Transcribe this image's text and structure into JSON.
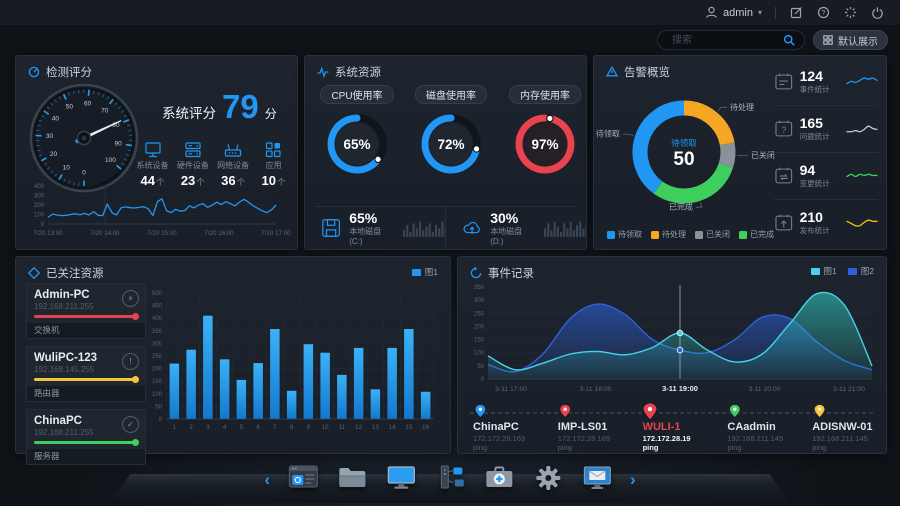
{
  "topbar": {
    "user": "admin",
    "caret": "▾"
  },
  "search": {
    "placeholder": "搜索",
    "default_view": "默认展示"
  },
  "panels": {
    "score": {
      "title": "检测评分",
      "score_label": "系统评分",
      "score_value": "79",
      "score_unit": "分",
      "stats": [
        {
          "label": "系统设备",
          "value": "44",
          "unit": "个",
          "icon": "monitor-icon"
        },
        {
          "label": "硬件设备",
          "value": "23",
          "unit": "个",
          "icon": "server-icon"
        },
        {
          "label": "网络设备",
          "value": "36",
          "unit": "个",
          "icon": "router-icon"
        },
        {
          "label": "应用",
          "value": "10",
          "unit": "个",
          "icon": "apps-icon"
        }
      ]
    },
    "resources": {
      "title": "系统资源",
      "disks": [
        {
          "value": "65%",
          "label": "本地磁盘(C:)",
          "icon": "floppy-icon"
        },
        {
          "value": "30%",
          "label": "本地磁盘(D:)",
          "icon": "cloud-upload-icon"
        }
      ]
    },
    "alerts": {
      "title": "告警概览",
      "stats": [
        {
          "value": "124",
          "label": "事件统计",
          "icon": "event-doc-icon"
        },
        {
          "value": "165",
          "label": "问题统计",
          "icon": "question-doc-icon"
        },
        {
          "value": "94",
          "label": "变更统计",
          "icon": "change-doc-icon"
        },
        {
          "value": "210",
          "label": "发布统计",
          "icon": "publish-doc-icon"
        }
      ]
    },
    "followed": {
      "title": "已关注资源",
      "resources": [
        {
          "name": "Admin-PC",
          "ip": "192.168.211.255",
          "type": "交换机",
          "status": "error",
          "status_glyph": "×",
          "color": "#e8434f"
        },
        {
          "name": "WuliPC-123",
          "ip": "192.168.145.255",
          "type": "路由器",
          "status": "warning",
          "status_glyph": "!",
          "color": "#f5c53a"
        },
        {
          "name": "ChinaPC",
          "ip": "192.168.211.255",
          "type": "服务器",
          "status": "ok",
          "status_glyph": "✓",
          "color": "#3ecf5e"
        }
      ]
    },
    "events": {
      "title": "事件记录",
      "hosts": [
        {
          "name": "ChinaPC",
          "ip": "172.172.28.169",
          "proto": "ping",
          "pin": "#2196f3",
          "highlight": false
        },
        {
          "name": "IMP-LS01",
          "ip": "172.172.28.169",
          "proto": "ping",
          "pin": "#e8434f",
          "highlight": false
        },
        {
          "name": "WULI-1",
          "ip": "172.172.28.19",
          "proto": "ping",
          "pin": "#e8434f",
          "highlight": true,
          "highlight_color": "#e8434f"
        },
        {
          "name": "CAadmin",
          "ip": "192.168.211.145",
          "proto": "ping",
          "pin": "#3ecf5e",
          "highlight": false
        },
        {
          "name": "ADISNW-01",
          "ip": "192.168.211.145",
          "proto": "ping",
          "pin": "#f5c53a",
          "highlight": false
        }
      ]
    }
  },
  "dock": {
    "prev": "‹",
    "next": "›"
  },
  "colors": {
    "accent": "#2196f3",
    "danger": "#e8434f",
    "warning": "#f5c53a",
    "success": "#3ecf5e"
  },
  "chart_data": [
    {
      "id": "score_gauge",
      "type": "gauge",
      "min": 0,
      "max": 100,
      "value": 79,
      "tick_step": 10
    },
    {
      "id": "score_trend",
      "type": "line",
      "color": "#2196f3",
      "ylim": [
        0,
        400
      ],
      "yticks": [
        0,
        100,
        200,
        300,
        400
      ],
      "x_labels": [
        "7/20 13:00",
        "7/20 14:00",
        "7/20 15:00",
        "7/20 16:00",
        "7/20 17:00"
      ],
      "values": [
        70,
        105,
        95,
        88,
        92,
        100,
        108,
        98,
        112,
        95,
        130,
        92,
        88,
        210,
        120,
        95,
        170,
        180,
        172,
        168,
        175,
        182,
        160,
        90,
        235,
        265,
        140,
        120,
        155,
        135,
        142,
        190,
        170,
        200,
        215,
        175,
        198,
        230,
        205,
        235,
        215,
        190,
        232,
        260,
        228,
        190,
        165,
        138,
        120,
        148,
        200
      ]
    },
    {
      "id": "resource_gauges",
      "type": "donut-gauge",
      "items": [
        {
          "label": "CPU使用率",
          "value": 65,
          "color": "#2196f3"
        },
        {
          "label": "磁盘使用率",
          "value": 72,
          "color": "#2196f3"
        },
        {
          "label": "内存使用率",
          "value": 97,
          "color": "#e8434f"
        }
      ]
    },
    {
      "id": "disk_sparkbars",
      "type": "bar",
      "color": "#3b4653",
      "series": [
        [
          4,
          7,
          3,
          8,
          5,
          9,
          4,
          6,
          8,
          3,
          7,
          5,
          9,
          6
        ],
        [
          5,
          8,
          4,
          9,
          6,
          3,
          8,
          5,
          9,
          4,
          7,
          9,
          5,
          8
        ]
      ]
    },
    {
      "id": "alert_donut",
      "type": "pie",
      "center_label": "待领取",
      "center_value": 50,
      "segments": [
        {
          "label": "待领取",
          "value": 40,
          "color": "#2196f3"
        },
        {
          "label": "待处理",
          "value": 22,
          "color": "#f5a623"
        },
        {
          "label": "已关闭",
          "value": 8,
          "color": "#8a9199"
        },
        {
          "label": "已完成",
          "value": 30,
          "color": "#3ecf5e"
        }
      ]
    },
    {
      "id": "stat_sparklines",
      "type": "line",
      "series": [
        {
          "name": "事件统计",
          "color": "#2196f3",
          "values": [
            4,
            6,
            5,
            7,
            9,
            8,
            9,
            7
          ]
        },
        {
          "name": "问题统计",
          "color": "#c2cbd4",
          "values": [
            3,
            3,
            4,
            3,
            5,
            8,
            6,
            5
          ]
        },
        {
          "name": "变更统计",
          "color": "#3ecf5e",
          "values": [
            5,
            7,
            5,
            7,
            6,
            7,
            6,
            6
          ]
        },
        {
          "name": "发布统计",
          "color": "#f1c40f",
          "values": [
            7,
            5,
            3,
            3,
            6,
            8,
            7,
            7
          ]
        }
      ]
    },
    {
      "id": "followed_bars",
      "type": "bar",
      "legend": "图1",
      "color": "#2196f3",
      "ylim": [
        0,
        500
      ],
      "ytick_step": 50,
      "categories": [
        "1",
        "2",
        "3",
        "4",
        "5",
        "6",
        "7",
        "8",
        "9",
        "10",
        "11",
        "12",
        "13",
        "14",
        "15",
        "16"
      ],
      "values": [
        220,
        275,
        410,
        237,
        155,
        222,
        357,
        112,
        297,
        263,
        175,
        282,
        118,
        282,
        357,
        108
      ]
    },
    {
      "id": "event_area",
      "type": "area",
      "ylim": [
        0,
        350
      ],
      "ytick_step": 50,
      "x_labels": [
        "3-11 17:00",
        "3-11 18:00",
        "3-11 19:00",
        "3-11 20:00",
        "3-11 21:00"
      ],
      "highlight_index": 2,
      "marker_values": [
        175,
        110
      ],
      "series": [
        {
          "name": "图1",
          "color": "#46d2ea",
          "values": [
            88,
            35,
            60,
            95,
            105,
            92,
            120,
            175,
            110,
            65,
            95,
            210,
            325,
            280,
            50
          ]
        },
        {
          "name": "图2",
          "color": "#2f62da",
          "values": [
            55,
            28,
            95,
            230,
            285,
            245,
            150,
            110,
            100,
            150,
            235,
            230,
            140,
            70,
            35
          ]
        }
      ]
    }
  ]
}
